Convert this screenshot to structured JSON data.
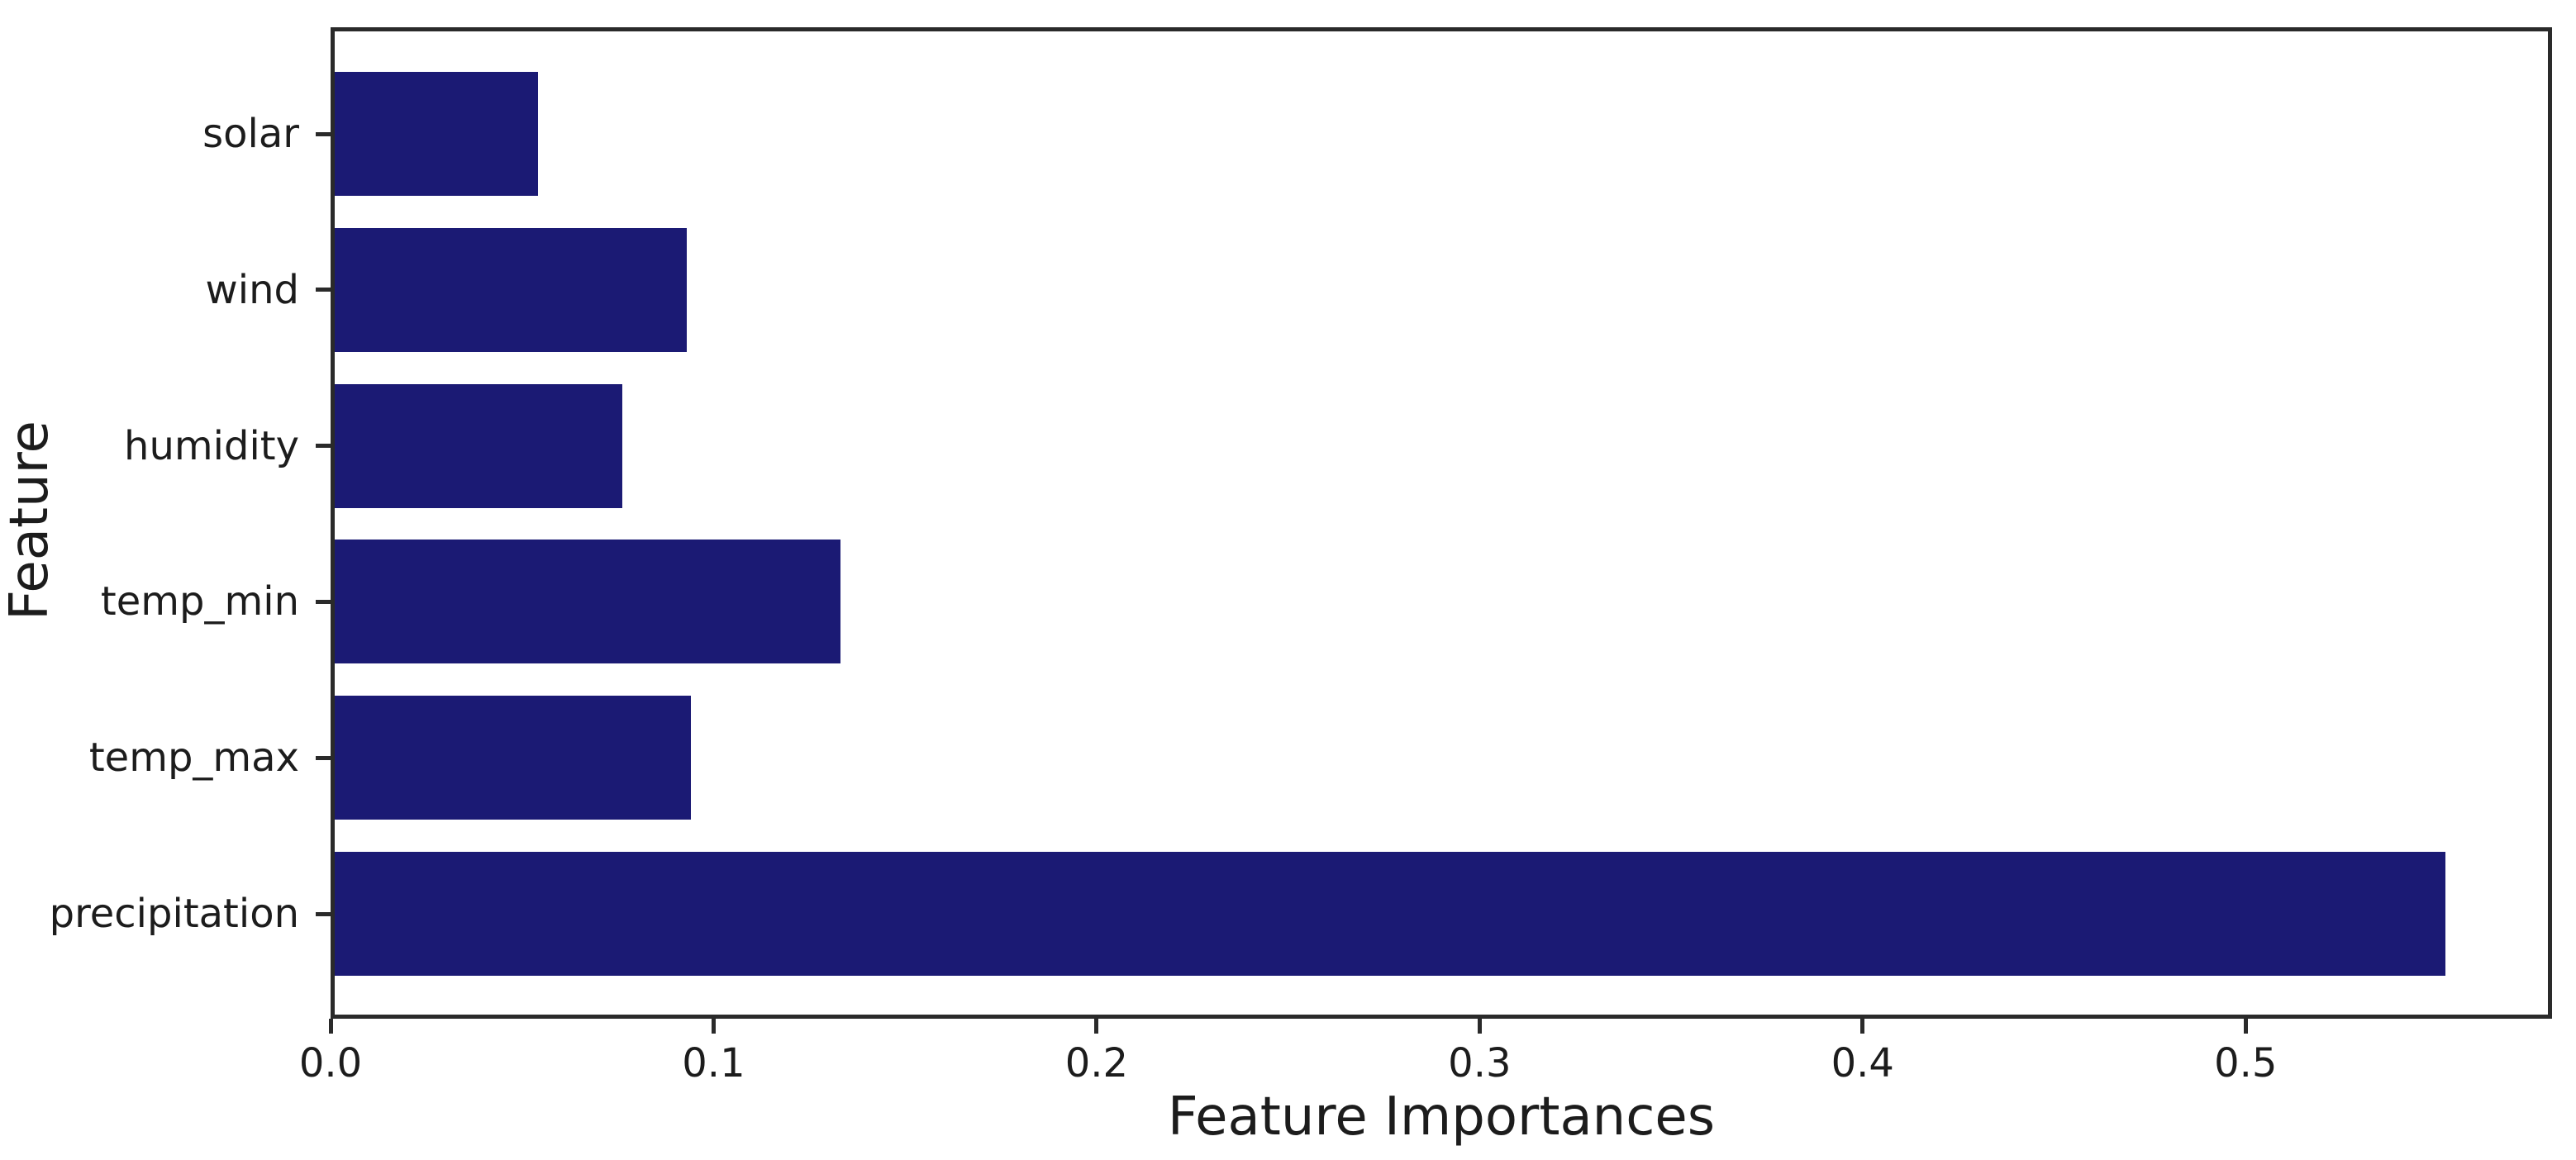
{
  "chart_data": {
    "type": "bar",
    "orientation": "horizontal",
    "xlabel": "Feature Importances",
    "ylabel": "Feature",
    "categories": [
      "solar",
      "wind",
      "humidity",
      "temp_min",
      "temp_max",
      "precipitation"
    ],
    "values": [
      0.053,
      0.092,
      0.075,
      0.132,
      0.093,
      0.551
    ],
    "xlim": [
      0,
      0.58
    ],
    "x_ticks": {
      "values": [
        0,
        0.1,
        0.2,
        0.3,
        0.4,
        0.5
      ],
      "labels": [
        "0.0",
        "0.1",
        "0.2",
        "0.3",
        "0.4",
        "0.5"
      ]
    },
    "grid": false,
    "legend": "none",
    "bar_color": "#1b1a74",
    "axis_color": "#2a2a2a",
    "text_color": "#1c1c1c",
    "background_color": "#ffffff"
  }
}
